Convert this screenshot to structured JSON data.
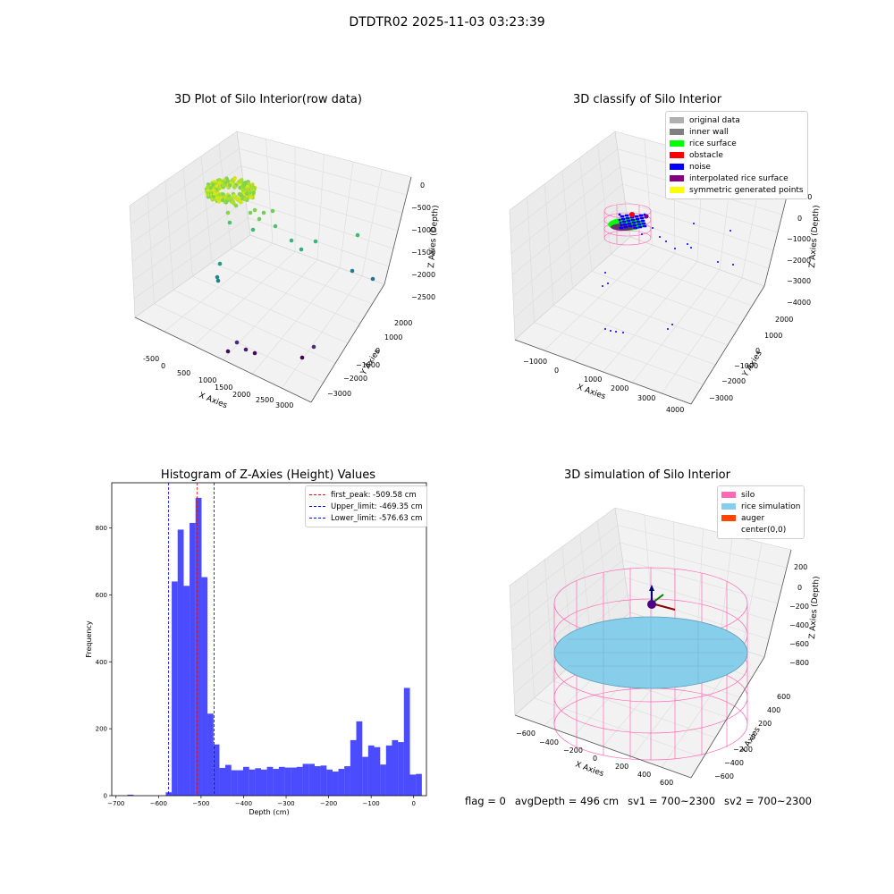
{
  "figure": {
    "suptitle": "DTDTR02 2025-11-03 03:23:39"
  },
  "status": {
    "flag": "flag = 0",
    "avg_depth": "avgDepth = 496 cm",
    "sv1": "sv1 = 700~2300",
    "sv2": "sv2 = 700~2300"
  },
  "chart_data": [
    {
      "type": "scatter",
      "title": "3D Plot of Silo Interior(row data)",
      "xlabel": "X Axies",
      "ylabel": "Y Axies",
      "zlabel": "Z Axies (Depth)",
      "x_ticks": [
        "-500",
        "0",
        "500",
        "1000",
        "1500",
        "2000",
        "2500",
        "3000"
      ],
      "y_ticks": [
        "2000",
        "1000",
        "0",
        "−1000",
        "−2000",
        "−3000"
      ],
      "z_ticks": [
        "0",
        "−500",
        "−1000",
        "−1500",
        "−2000",
        "−2500"
      ],
      "colormap": "viridis (colored by depth)"
    },
    {
      "type": "scatter",
      "title": "3D classify of Silo Interior",
      "xlabel": "X Axies",
      "ylabel": "Y Axies",
      "zlabel": "Z Axies (Depth)",
      "x_ticks": [
        "−1000",
        "0",
        "1000",
        "2000",
        "3000",
        "4000"
      ],
      "y_ticks": [
        "2000",
        "1000",
        "0",
        "−1000",
        "−2000",
        "−3000"
      ],
      "z_ticks": [
        "1000",
        "0",
        "−1000",
        "−2000",
        "−3000",
        "−4000"
      ],
      "legend": [
        {
          "label": "original data",
          "color": "#b0b0b0"
        },
        {
          "label": "inner wall",
          "color": "#808080"
        },
        {
          "label": "rice surface",
          "color": "#00ff00"
        },
        {
          "label": "obstacle",
          "color": "#ff0000"
        },
        {
          "label": "noise",
          "color": "#0000ff"
        },
        {
          "label": "interpolated rice surface",
          "color": "#800080"
        },
        {
          "label": "symmetric generated points",
          "color": "#ffff00"
        }
      ]
    },
    {
      "type": "bar",
      "title": "Histogram of Z-Axies (Height) Values",
      "xlabel": "Depth (cm)",
      "ylabel": "Frequency",
      "xlim": [
        -710,
        30
      ],
      "ylim": [
        0,
        935
      ],
      "x_ticks": [
        -700,
        -600,
        -500,
        -400,
        -300,
        -200,
        -100,
        0
      ],
      "x_tick_labels": [
        "−700",
        "−600",
        "−500",
        "−400",
        "−300",
        "−200",
        "−100",
        "0"
      ],
      "y_ticks": [
        0,
        200,
        400,
        600,
        800
      ],
      "bar_color": "#4c4cff",
      "bin_width": 14.2,
      "bins": [
        {
          "x": -673,
          "v": 3
        },
        {
          "x": -583,
          "v": 10
        },
        {
          "x": -569,
          "v": 640
        },
        {
          "x": -555,
          "v": 795
        },
        {
          "x": -541,
          "v": 627
        },
        {
          "x": -527,
          "v": 815
        },
        {
          "x": -513,
          "v": 890
        },
        {
          "x": -499,
          "v": 653
        },
        {
          "x": -485,
          "v": 245
        },
        {
          "x": -471,
          "v": 153
        },
        {
          "x": -457,
          "v": 83
        },
        {
          "x": -443,
          "v": 92
        },
        {
          "x": -429,
          "v": 76
        },
        {
          "x": -415,
          "v": 76
        },
        {
          "x": -401,
          "v": 86
        },
        {
          "x": -387,
          "v": 78
        },
        {
          "x": -373,
          "v": 82
        },
        {
          "x": -359,
          "v": 78
        },
        {
          "x": -345,
          "v": 86
        },
        {
          "x": -331,
          "v": 80
        },
        {
          "x": -317,
          "v": 86
        },
        {
          "x": -303,
          "v": 84
        },
        {
          "x": -289,
          "v": 84
        },
        {
          "x": -275,
          "v": 86
        },
        {
          "x": -261,
          "v": 95
        },
        {
          "x": -247,
          "v": 95
        },
        {
          "x": -233,
          "v": 88
        },
        {
          "x": -219,
          "v": 90
        },
        {
          "x": -205,
          "v": 78
        },
        {
          "x": -191,
          "v": 72
        },
        {
          "x": -177,
          "v": 80
        },
        {
          "x": -163,
          "v": 88
        },
        {
          "x": -149,
          "v": 166
        },
        {
          "x": -135,
          "v": 222
        },
        {
          "x": -121,
          "v": 116
        },
        {
          "x": -107,
          "v": 150
        },
        {
          "x": -93,
          "v": 145
        },
        {
          "x": -79,
          "v": 93
        },
        {
          "x": -65,
          "v": 150
        },
        {
          "x": -51,
          "v": 166
        },
        {
          "x": -37,
          "v": 160
        },
        {
          "x": -23,
          "v": 322
        },
        {
          "x": -9,
          "v": 63
        },
        {
          "x": 5,
          "v": 65
        }
      ],
      "vlines": [
        {
          "label": "first_peak: -509.58 cm",
          "x": -509.58,
          "color": "#ff0000"
        },
        {
          "label": "Upper_limit: -469.35 cm",
          "x": -469.35,
          "color": "#0000ff"
        },
        {
          "label": "Lower_limit: -576.63 cm",
          "x": -576.63,
          "color": "#0000ff"
        }
      ]
    },
    {
      "type": "scatter",
      "title": "3D simulation of Silo Interior",
      "xlabel": "X Axies",
      "ylabel": "Y Axies",
      "zlabel": "Z Axies (Depth)",
      "x_ticks": [
        "−600",
        "−400",
        "−200",
        "0",
        "200",
        "400",
        "600"
      ],
      "y_ticks": [
        "600",
        "400",
        "200",
        "0",
        "−200",
        "−400",
        "−600"
      ],
      "z_ticks": [
        "200",
        "0",
        "−200",
        "−400",
        "−600",
        "−800"
      ],
      "legend": [
        {
          "label": "silo",
          "color": "#ff69b4"
        },
        {
          "label": "rice simulation",
          "color": "#87ceeb"
        },
        {
          "label": "auger",
          "color": "#ff4500"
        },
        {
          "label": "center(0,0)",
          "color": ""
        }
      ]
    }
  ]
}
